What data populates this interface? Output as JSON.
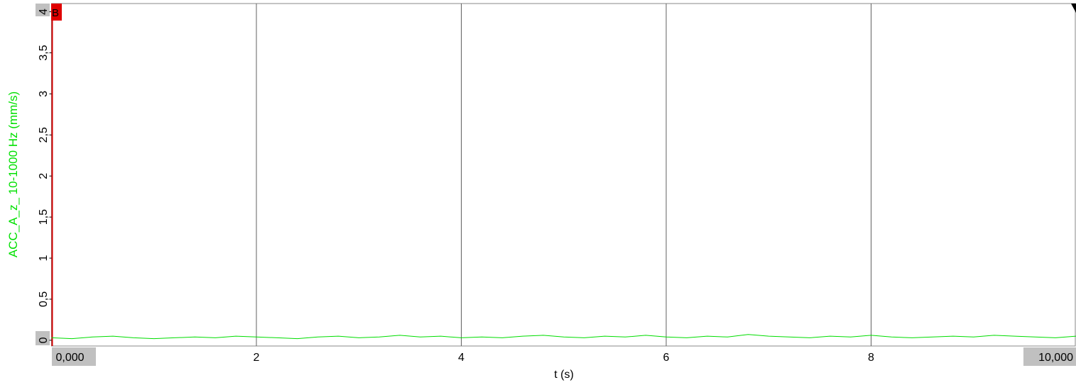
{
  "chart_data": {
    "type": "line",
    "ylabel": "ACC_A_z_ 10-1000 Hz (mm/s)",
    "xlabel": "t (s)",
    "marker_label": "B",
    "grid": true,
    "xlim": [
      0,
      10
    ],
    "ylim": [
      -0.07,
      4.1
    ],
    "xticks": [
      {
        "value": 0,
        "label": "0,000"
      },
      2,
      4,
      6,
      8,
      {
        "value": 10,
        "label": "10,000"
      }
    ],
    "yticks": [
      0,
      {
        "value": 0.5,
        "label": "0,5"
      },
      1,
      {
        "value": 1.5,
        "label": "1,5"
      },
      2,
      {
        "value": 2.5,
        "label": "2,5"
      },
      3,
      {
        "value": 3.5,
        "label": "3,5"
      },
      4
    ],
    "x": [
      0,
      0.2,
      0.4,
      0.6,
      0.8,
      1,
      1.2,
      1.4,
      1.6,
      1.8,
      2,
      2.2,
      2.4,
      2.6,
      2.8,
      3,
      3.2,
      3.4,
      3.6,
      3.8,
      4,
      4.2,
      4.4,
      4.6,
      4.8,
      5,
      5.2,
      5.4,
      5.6,
      5.8,
      6,
      6.2,
      6.4,
      6.6,
      6.8,
      7,
      7.2,
      7.4,
      7.6,
      7.8,
      8,
      8.2,
      8.4,
      8.6,
      8.8,
      9,
      9.2,
      9.4,
      9.6,
      9.8,
      10
    ],
    "series": [
      {
        "name": "ACC_A_z_ 10-1000 Hz",
        "color": "#00dd00",
        "values": [
          0.03,
          0.02,
          0.04,
          0.05,
          0.03,
          0.02,
          0.03,
          0.04,
          0.03,
          0.05,
          0.04,
          0.03,
          0.02,
          0.04,
          0.05,
          0.03,
          0.04,
          0.06,
          0.04,
          0.05,
          0.03,
          0.04,
          0.03,
          0.05,
          0.06,
          0.04,
          0.03,
          0.05,
          0.04,
          0.06,
          0.04,
          0.03,
          0.05,
          0.04,
          0.07,
          0.05,
          0.04,
          0.03,
          0.05,
          0.04,
          0.06,
          0.04,
          0.03,
          0.04,
          0.05,
          0.04,
          0.06,
          0.05,
          0.04,
          0.03,
          0.05
        ]
      }
    ]
  }
}
